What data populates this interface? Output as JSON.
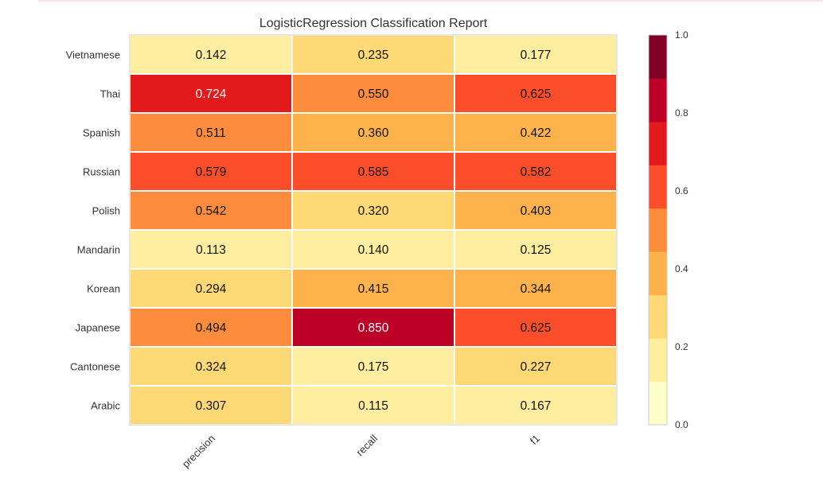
{
  "chart_data": {
    "type": "heatmap",
    "title": "LogisticRegression Classification Report",
    "rows": [
      "Vietnamese",
      "Thai",
      "Spanish",
      "Russian",
      "Polish",
      "Mandarin",
      "Korean",
      "Japanese",
      "Cantonese",
      "Arabic"
    ],
    "columns": [
      "precision",
      "recall",
      "f1"
    ],
    "values": [
      [
        0.142,
        0.235,
        0.177
      ],
      [
        0.724,
        0.55,
        0.625
      ],
      [
        0.511,
        0.36,
        0.422
      ],
      [
        0.579,
        0.585,
        0.582
      ],
      [
        0.542,
        0.32,
        0.403
      ],
      [
        0.113,
        0.14,
        0.125
      ],
      [
        0.294,
        0.415,
        0.344
      ],
      [
        0.494,
        0.85,
        0.625
      ],
      [
        0.324,
        0.175,
        0.227
      ],
      [
        0.307,
        0.115,
        0.167
      ]
    ],
    "value_labels": [
      [
        "0.142",
        "0.235",
        "0.177"
      ],
      [
        "0.724",
        "0.550",
        "0.625"
      ],
      [
        "0.511",
        "0.360",
        "0.422"
      ],
      [
        "0.579",
        "0.585",
        "0.582"
      ],
      [
        "0.542",
        "0.320",
        "0.403"
      ],
      [
        "0.113",
        "0.140",
        "0.125"
      ],
      [
        "0.294",
        "0.415",
        "0.344"
      ],
      [
        "0.494",
        "0.850",
        "0.625"
      ],
      [
        "0.324",
        "0.175",
        "0.227"
      ],
      [
        "0.307",
        "0.115",
        "0.167"
      ]
    ],
    "colorbar": {
      "range": [
        0.0,
        1.0
      ],
      "ticks": [
        "0.0",
        "0.2",
        "0.4",
        "0.6",
        "0.8",
        "1.0"
      ],
      "colors": [
        "#ffffcc",
        "#ffeda0",
        "#fed976",
        "#feb24c",
        "#fd8d3c",
        "#fc4e2a",
        "#e31a1c",
        "#bd0026",
        "#800026"
      ]
    },
    "grid": false,
    "legend": "colorbar-right"
  }
}
